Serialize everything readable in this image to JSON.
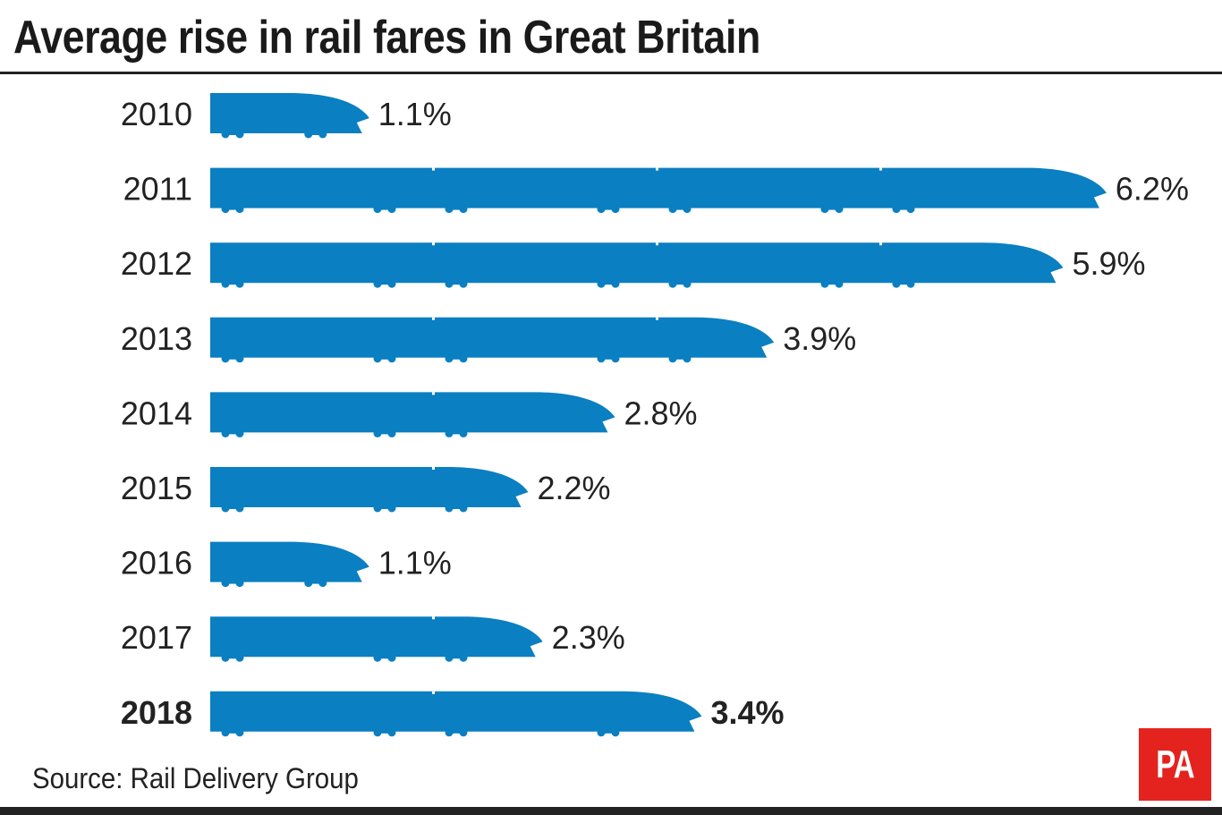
{
  "title": "Average rise in rail fares in Great Britain",
  "source": "Source: Rail Delivery Group",
  "logo": "PA",
  "colors": {
    "train": "#0a7fc1",
    "logo": "#e4231f",
    "text": "#222222"
  },
  "chart_data": {
    "type": "bar",
    "orientation": "horizontal",
    "title": "Average rise in rail fares in Great Britain",
    "categories": [
      "2010",
      "2011",
      "2012",
      "2013",
      "2014",
      "2015",
      "2016",
      "2017",
      "2018"
    ],
    "values": [
      1.1,
      6.2,
      5.9,
      3.9,
      2.8,
      2.2,
      1.1,
      2.3,
      3.4
    ],
    "value_labels": [
      "1.1%",
      "6.2%",
      "5.9%",
      "3.9%",
      "2.8%",
      "2.2%",
      "1.1%",
      "2.3%",
      "3.4%"
    ],
    "highlighted": "2018",
    "mark": "train-shaped bar",
    "unit": "%",
    "grid": false
  }
}
